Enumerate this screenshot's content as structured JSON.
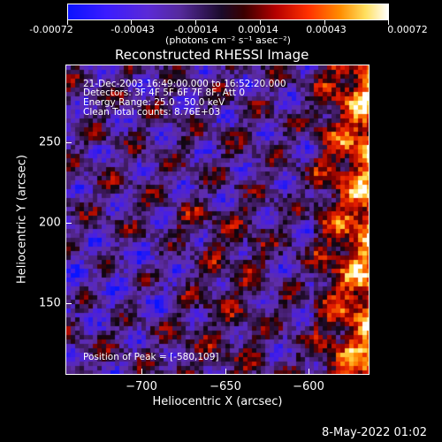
{
  "colorbar": {
    "ticks": [
      "-0.00072",
      "-0.00043",
      "-0.00014",
      "0.00014",
      "0.00043",
      "0.00072"
    ],
    "unit_label": "(photons cm⁻² s⁻¹ asec⁻²)"
  },
  "image": {
    "title": "Reconstructed RHESSI Image",
    "info_lines": [
      "21-Dec-2003 16:49:00.000 to 16:52:20.000",
      "Detectors: 3F 4F 5F 6F 7F 8F, Att 0",
      "Energy Range: 25.0 - 50.0 keV",
      "Clean     Total counts: 8.76E+03"
    ],
    "peak_label": "Position of Peak = [-580,109]"
  },
  "axes": {
    "x_label": "Heliocentric X (arcsec)",
    "y_label": "Heliocentric Y (arcsec)",
    "x_ticks": [
      "−700",
      "−650",
      "−600"
    ],
    "y_ticks": [
      "250",
      "200",
      "150"
    ]
  },
  "footer": {
    "date": "8-May-2022 01:02"
  }
}
